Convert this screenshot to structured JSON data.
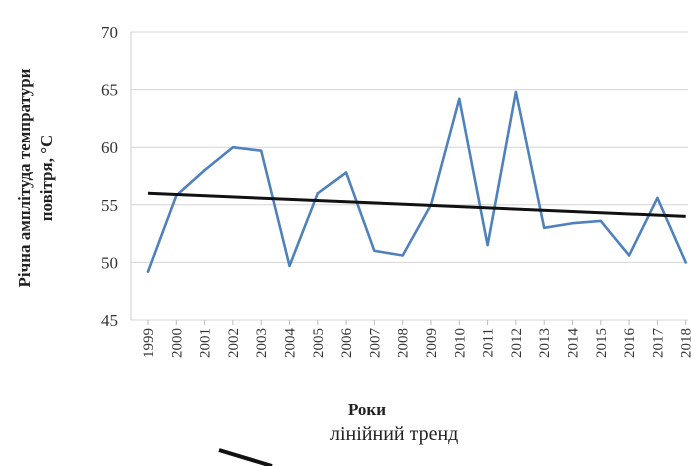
{
  "chart_data": {
    "type": "line",
    "xlabel": "Роки",
    "ylabel_line1": "Річна амплітуда темпратури",
    "ylabel_line2": "повітря, °С",
    "ylim": [
      45,
      70
    ],
    "yticks": [
      45,
      50,
      55,
      60,
      65,
      70
    ],
    "grid": "horizontal",
    "legend_position": "bottom",
    "categories": [
      "1999",
      "2000",
      "2001",
      "2002",
      "2003",
      "2004",
      "2005",
      "2006",
      "2007",
      "2008",
      "2009",
      "2010",
      "2011",
      "2012",
      "2013",
      "2014",
      "2015",
      "2016",
      "2017",
      "2018"
    ],
    "series": [
      {
        "color": "#4f81bd",
        "values": [
          49.2,
          55.8,
          58.0,
          60.0,
          59.7,
          49.7,
          56.0,
          57.8,
          51.0,
          50.6,
          55.0,
          64.2,
          51.5,
          64.8,
          53.0,
          53.4,
          53.6,
          50.6,
          55.6,
          50.0
        ]
      }
    ],
    "trend": {
      "name": "лінійний тренд",
      "color": "#111111",
      "start": 56.0,
      "end": 54.0
    }
  }
}
